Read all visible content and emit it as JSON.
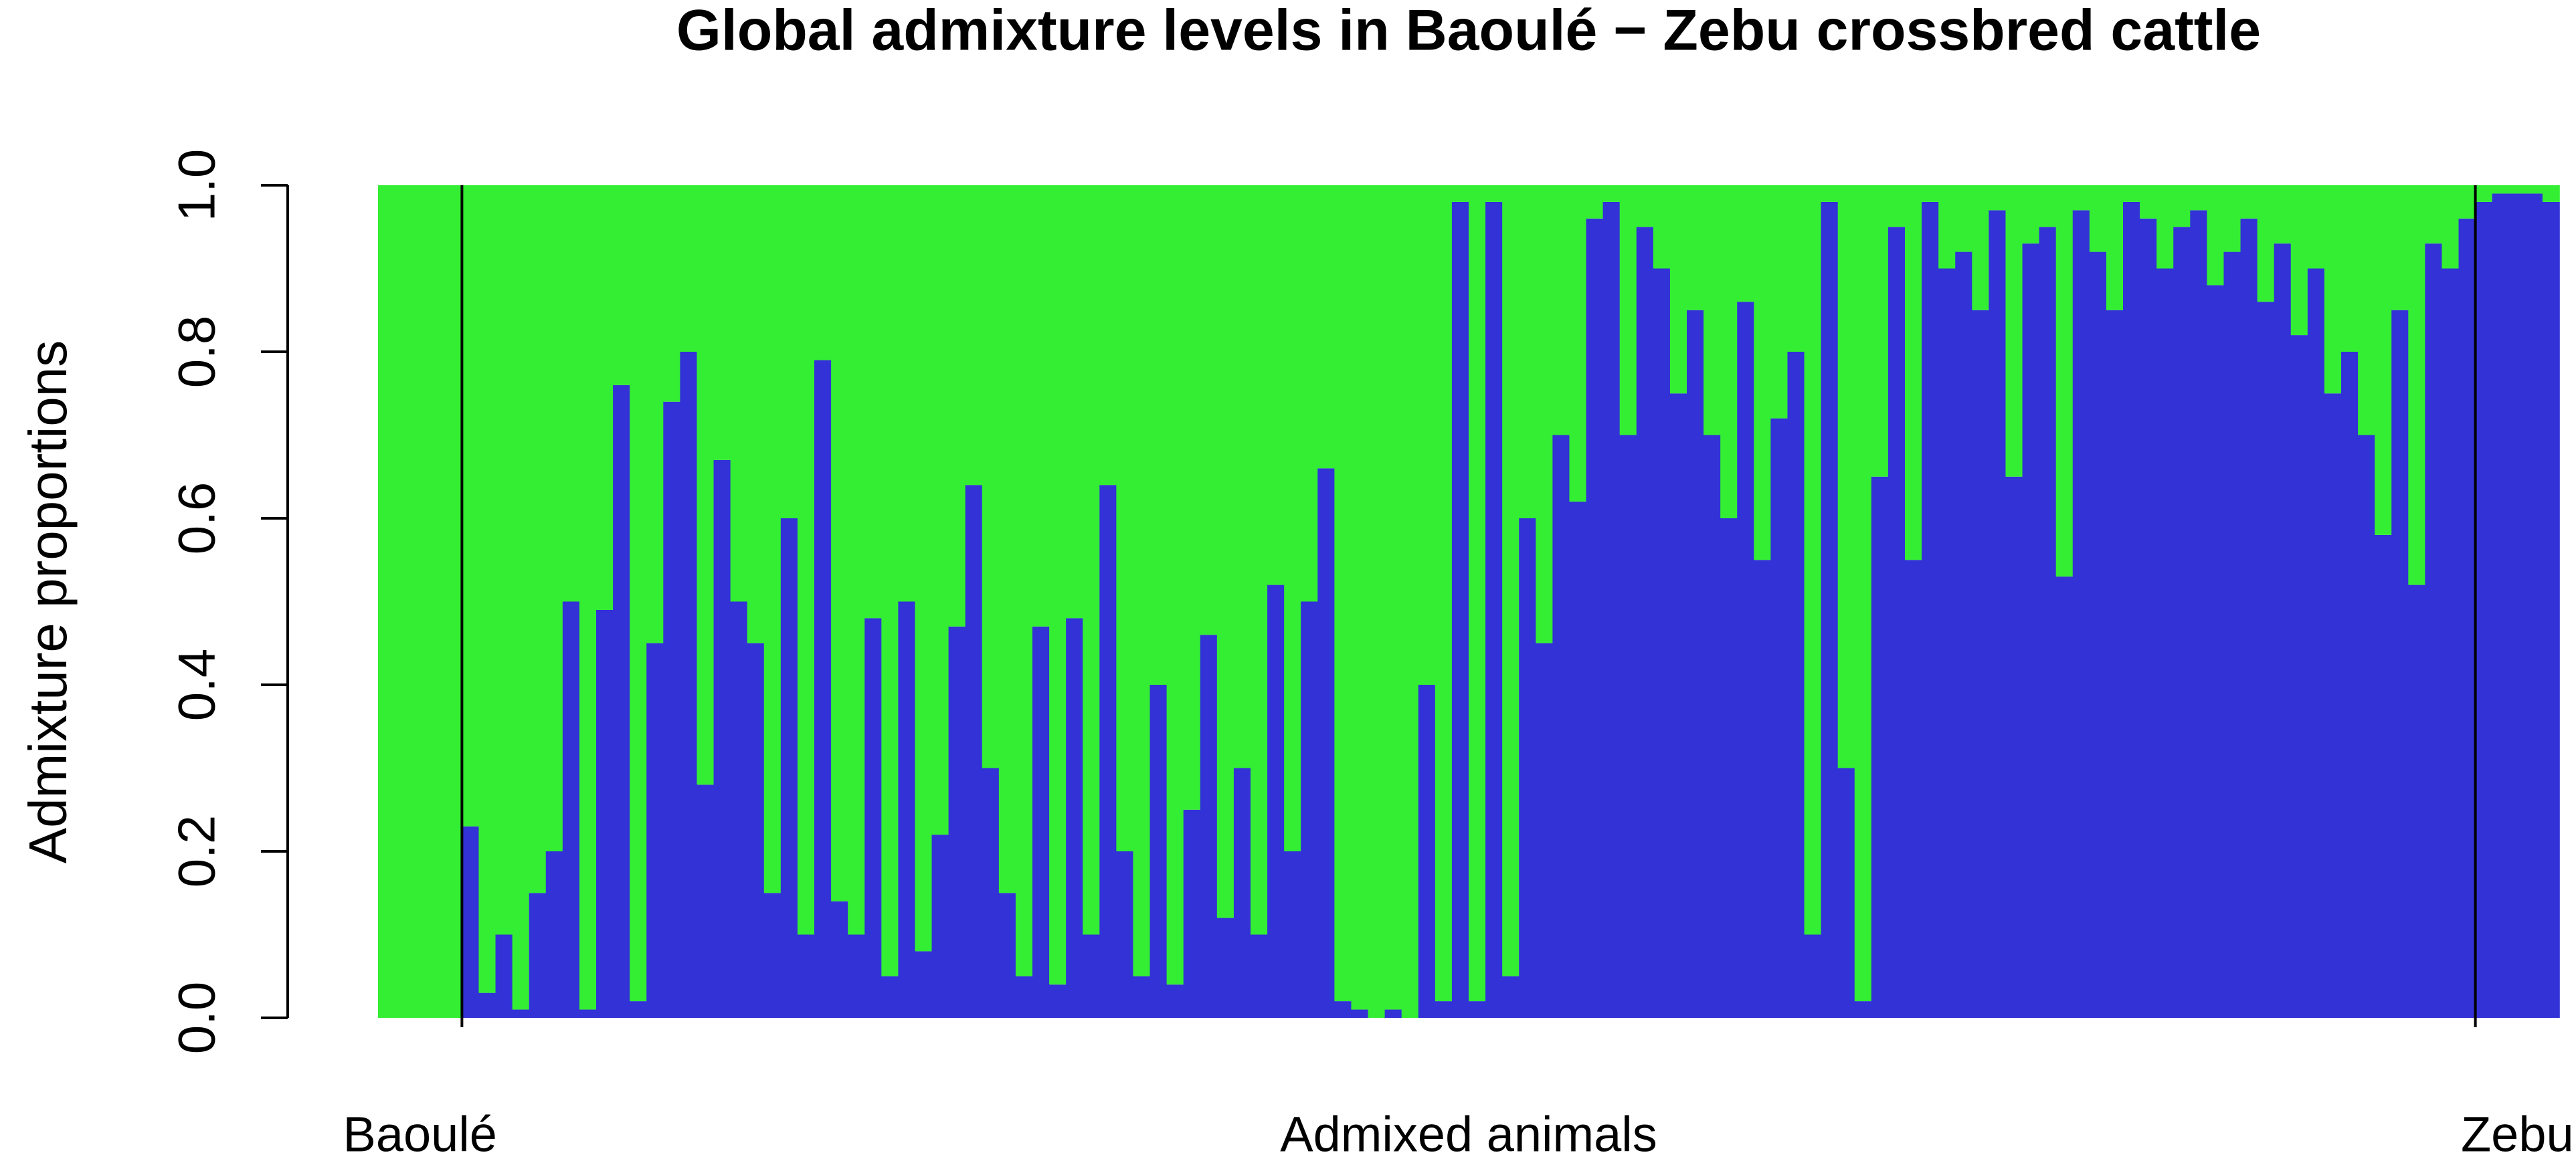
{
  "chart_data": {
    "type": "bar",
    "stacked": true,
    "title": "Global admixture levels in Baoulé − Zebu crossbred cattle",
    "ylabel": "Admixture proportions",
    "ylim": [
      0,
      1
    ],
    "yticks": [
      {
        "value": 0,
        "label": "0.0"
      },
      0.2,
      0.4,
      0.6,
      0.8,
      {
        "value": 1,
        "label": "1.0"
      }
    ],
    "groups": [
      {
        "label": "Baoulé",
        "series": [
          {
            "color": "#3232d6",
            "values": [
              0,
              0,
              0,
              0,
              0
            ]
          },
          {
            "color": "#33ee33",
            "values": [
              1,
              1,
              1,
              1,
              1
            ]
          }
        ]
      },
      {
        "label": "Admixed animals",
        "series": [
          {
            "color": "#3232d6",
            "values": [
              0.23,
              0.03,
              0.1,
              0.01,
              0.15,
              0.2,
              0.5,
              0.01,
              0.49,
              0.76,
              0.02,
              0.45,
              0.74,
              0.8,
              0.28,
              0.67,
              0.5,
              0.45,
              0.15,
              0.6,
              0.1,
              0.79,
              0.14,
              0.1,
              0.48,
              0.05,
              0.5,
              0.08,
              0.22,
              0.47,
              0.64,
              0.3,
              0.15,
              0.05,
              0.47,
              0.04,
              0.48,
              0.1,
              0.64,
              0.2,
              0.05,
              0.4,
              0.04,
              0.25,
              0.46,
              0.12,
              0.3,
              0.1,
              0.52,
              0.2,
              0.5,
              0.66,
              0.02,
              0.01,
              0,
              0.01,
              0,
              0.4,
              0.02,
              0.98,
              0.02,
              0.98,
              0.05,
              0.6,
              0.45,
              0.7,
              0.62,
              0.96,
              0.98,
              0.7,
              0.95,
              0.9,
              0.75,
              0.85,
              0.7,
              0.6,
              0.86,
              0.55,
              0.72,
              0.8,
              0.1,
              0.98,
              0.3,
              0.02,
              0.65,
              0.95,
              0.55,
              0.98,
              0.9,
              0.92,
              0.85,
              0.97,
              0.65,
              0.93,
              0.95,
              0.53,
              0.97,
              0.92,
              0.85,
              0.98,
              0.96,
              0.9,
              0.95,
              0.97,
              0.88,
              0.92,
              0.96,
              0.86,
              0.93,
              0.82,
              0.9,
              0.75,
              0.8,
              0.7,
              0.58,
              0.85,
              0.52,
              0.93,
              0.9,
              0.96
            ]
          },
          {
            "color": "#33ee33",
            "values": [
              0.77,
              0.97,
              0.9,
              0.99,
              0.85,
              0.8,
              0.5,
              0.99,
              0.51,
              0.24,
              0.98,
              0.55,
              0.26,
              0.2,
              0.72,
              0.33,
              0.5,
              0.55,
              0.85,
              0.4,
              0.9,
              0.21,
              0.86,
              0.9,
              0.52,
              0.95,
              0.5,
              0.92,
              0.78,
              0.53,
              0.36,
              0.7,
              0.85,
              0.95,
              0.53,
              0.96,
              0.52,
              0.9,
              0.36,
              0.8,
              0.95,
              0.6,
              0.96,
              0.75,
              0.54,
              0.88,
              0.7,
              0.9,
              0.48,
              0.8,
              0.5,
              0.34,
              0.98,
              0.99,
              1,
              0.99,
              1,
              0.6,
              0.98,
              0.02,
              0.98,
              0.02,
              0.95,
              0.4,
              0.55,
              0.3,
              0.38,
              0.04,
              0.02,
              0.3,
              0.05,
              0.1,
              0.25,
              0.15,
              0.3,
              0.4,
              0.14,
              0.45,
              0.28,
              0.2,
              0.9,
              0.02,
              0.7,
              0.98,
              0.35,
              0.05,
              0.45,
              0.02,
              0.1,
              0.08,
              0.15,
              0.03,
              0.35,
              0.07,
              0.05,
              0.47,
              0.03,
              0.08,
              0.15,
              0.02,
              0.04,
              0.1,
              0.05,
              0.03,
              0.12,
              0.08,
              0.04,
              0.14,
              0.07,
              0.18,
              0.1,
              0.25,
              0.2,
              0.3,
              0.42,
              0.15,
              0.48,
              0.07,
              0.1,
              0.04
            ]
          }
        ]
      },
      {
        "label": "Zebu",
        "series": [
          {
            "color": "#3232d6",
            "values": [
              0.98,
              0.99,
              0.99,
              0.99,
              0.98
            ]
          },
          {
            "color": "#33ee33",
            "values": [
              0.02,
              0.01,
              0.01,
              0.01,
              0.02
            ]
          }
        ]
      }
    ]
  }
}
